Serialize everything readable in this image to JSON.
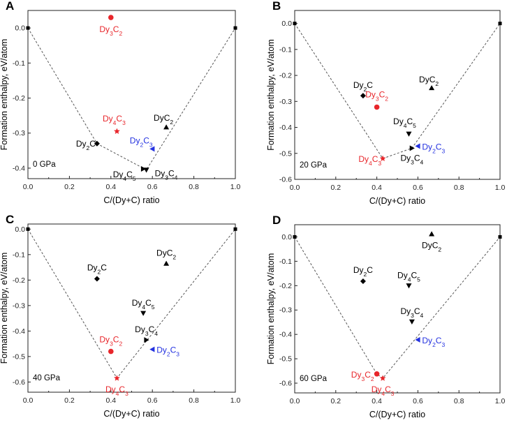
{
  "colors": {
    "black": "#000000",
    "red": "#e8262b",
    "blue": "#2432e0",
    "axis": "#222222",
    "hull": "#555555"
  },
  "chart_data": [
    {
      "panel_label": "A",
      "type": "scatter",
      "pressure_label": "0 GPa",
      "xlabel": "C/(Dy+C) ratio",
      "ylabel": "Formation enthalpy, eV/atom",
      "xlim": [
        0.0,
        1.0
      ],
      "ylim": [
        -0.43,
        0.05
      ],
      "xticks": [
        "0.0",
        "0.2",
        "0.4",
        "0.6",
        "0.8",
        "1.0"
      ],
      "yticks": [
        "-0.4",
        "-0.3",
        "-0.2",
        "-0.1",
        "0.0"
      ],
      "ytick_values": [
        -0.4,
        -0.3,
        -0.2,
        -0.1,
        0.0
      ],
      "hull": [
        [
          0.0,
          0.0
        ],
        [
          0.333,
          -0.33
        ],
        [
          0.571,
          -0.405
        ],
        [
          1.0,
          0.0
        ]
      ],
      "points": [
        {
          "x": 0.0,
          "y": 0.0,
          "marker": "square",
          "color": "black",
          "label": "",
          "sub": []
        },
        {
          "x": 1.0,
          "y": 0.0,
          "marker": "square",
          "color": "black",
          "label": "",
          "sub": []
        },
        {
          "x": 0.333,
          "y": -0.33,
          "marker": "diamond",
          "color": "black",
          "label": "Dy2C",
          "sub": [
            "Dy",
            "2",
            "C",
            ""
          ]
        },
        {
          "x": 0.4,
          "y": 0.03,
          "marker": "circle",
          "color": "red",
          "label": "Dy3C2",
          "sub": [
            "Dy",
            "3",
            "C",
            "2"
          ]
        },
        {
          "x": 0.429,
          "y": -0.295,
          "marker": "star",
          "color": "red",
          "label": "Dy4C3",
          "sub": [
            "Dy",
            "4",
            "C",
            "3"
          ]
        },
        {
          "x": 0.556,
          "y": -0.402,
          "marker": "tri-right",
          "color": "black",
          "label": "Dy4C5",
          "sub": [
            "Dy",
            "4",
            "C",
            "5"
          ]
        },
        {
          "x": 0.571,
          "y": -0.405,
          "marker": "tri-down",
          "color": "black",
          "label": "Dy3C4",
          "sub": [
            "Dy",
            "3",
            "C",
            "4"
          ]
        },
        {
          "x": 0.6,
          "y": -0.345,
          "marker": "tri-left",
          "color": "blue",
          "label": "Dy2C3",
          "sub": [
            "Dy",
            "2",
            "C",
            "3"
          ]
        },
        {
          "x": 0.667,
          "y": -0.283,
          "marker": "tri-up",
          "color": "black",
          "label": "DyC2",
          "sub": [
            "Dy",
            "",
            "C",
            "2"
          ]
        }
      ]
    },
    {
      "panel_label": "B",
      "type": "scatter",
      "pressure_label": "20 GPa",
      "xlabel": "C/(Dy+C) ratio",
      "ylabel": "Formation enthalpy, eV/atom",
      "xlim": [
        0.0,
        1.0
      ],
      "ylim": [
        -0.6,
        0.05
      ],
      "xticks": [
        "0.0",
        "0.2",
        "0.4",
        "0.6",
        "0.8",
        "1.0"
      ],
      "yticks": [
        "-0.6",
        "-0.5",
        "-0.4",
        "-0.3",
        "-0.2",
        "-0.1",
        "0.0"
      ],
      "ytick_values": [
        -0.6,
        -0.5,
        -0.4,
        -0.3,
        -0.2,
        -0.1,
        0.0
      ],
      "hull": [
        [
          0.0,
          0.0
        ],
        [
          0.429,
          -0.52
        ],
        [
          0.571,
          -0.48
        ],
        [
          1.0,
          0.0
        ]
      ],
      "points": [
        {
          "x": 0.0,
          "y": 0.0,
          "marker": "square",
          "color": "black",
          "label": "",
          "sub": []
        },
        {
          "x": 1.0,
          "y": 0.0,
          "marker": "square",
          "color": "black",
          "label": "",
          "sub": []
        },
        {
          "x": 0.333,
          "y": -0.278,
          "marker": "diamond",
          "color": "black",
          "label": "Dy2C",
          "sub": [
            "Dy",
            "2",
            "C",
            ""
          ]
        },
        {
          "x": 0.4,
          "y": -0.322,
          "marker": "circle",
          "color": "red",
          "label": "Dy3C2",
          "sub": [
            "Dy",
            "3",
            "C",
            "2"
          ]
        },
        {
          "x": 0.429,
          "y": -0.52,
          "marker": "star",
          "color": "red",
          "label": "Dy4C3",
          "sub": [
            "Dy",
            "4",
            "C",
            "3"
          ]
        },
        {
          "x": 0.556,
          "y": -0.425,
          "marker": "tri-down",
          "color": "black",
          "label": "Dy4C5",
          "sub": [
            "Dy",
            "4",
            "C",
            "5"
          ]
        },
        {
          "x": 0.571,
          "y": -0.48,
          "marker": "tri-right",
          "color": "black",
          "label": "Dy3C4",
          "sub": [
            "Dy",
            "3",
            "C",
            "4"
          ]
        },
        {
          "x": 0.6,
          "y": -0.472,
          "marker": "tri-left",
          "color": "blue",
          "label": "Dy2C3",
          "sub": [
            "Dy",
            "2",
            "C",
            "3"
          ]
        },
        {
          "x": 0.667,
          "y": -0.248,
          "marker": "tri-up",
          "color": "black",
          "label": "DyC2",
          "sub": [
            "Dy",
            "",
            "C",
            "2"
          ]
        }
      ]
    },
    {
      "panel_label": "C",
      "type": "scatter",
      "pressure_label": "40 GPa",
      "xlabel": "C/(Dy+C) ratio",
      "ylabel": "Formation enthalpy, eV/atom",
      "xlim": [
        0.0,
        1.0
      ],
      "ylim": [
        -0.64,
        0.02
      ],
      "xticks": [
        "0.0",
        "0.2",
        "0.4",
        "0.6",
        "0.8",
        "1.0"
      ],
      "yticks": [
        "-0.6",
        "-0.5",
        "-0.4",
        "-0.3",
        "-0.2",
        "-0.1",
        "0.0"
      ],
      "ytick_values": [
        -0.6,
        -0.5,
        -0.4,
        -0.3,
        -0.2,
        -0.1,
        0.0
      ],
      "hull": [
        [
          0.0,
          0.0
        ],
        [
          0.429,
          -0.585
        ],
        [
          1.0,
          0.0
        ]
      ],
      "points": [
        {
          "x": 0.0,
          "y": 0.0,
          "marker": "square",
          "color": "black",
          "label": "",
          "sub": []
        },
        {
          "x": 1.0,
          "y": 0.0,
          "marker": "square",
          "color": "black",
          "label": "",
          "sub": []
        },
        {
          "x": 0.333,
          "y": -0.195,
          "marker": "diamond",
          "color": "black",
          "label": "Dy2C",
          "sub": [
            "Dy",
            "2",
            "C",
            ""
          ]
        },
        {
          "x": 0.4,
          "y": -0.48,
          "marker": "circle",
          "color": "red",
          "label": "Dy3C2",
          "sub": [
            "Dy",
            "3",
            "C",
            "2"
          ]
        },
        {
          "x": 0.429,
          "y": -0.585,
          "marker": "star",
          "color": "red",
          "label": "Dy4C3",
          "sub": [
            "Dy",
            "4",
            "C",
            "3"
          ]
        },
        {
          "x": 0.556,
          "y": -0.33,
          "marker": "tri-down",
          "color": "black",
          "label": "Dy4C5",
          "sub": [
            "Dy",
            "4",
            "C",
            "5"
          ]
        },
        {
          "x": 0.571,
          "y": -0.435,
          "marker": "tri-right",
          "color": "black",
          "label": "Dy3C4",
          "sub": [
            "Dy",
            "3",
            "C",
            "4"
          ]
        },
        {
          "x": 0.6,
          "y": -0.472,
          "marker": "tri-left",
          "color": "blue",
          "label": "Dy2C3",
          "sub": [
            "Dy",
            "2",
            "C",
            "3"
          ]
        },
        {
          "x": 0.667,
          "y": -0.135,
          "marker": "tri-up",
          "color": "black",
          "label": "DyC2",
          "sub": [
            "Dy",
            "",
            "C",
            "2"
          ]
        }
      ]
    },
    {
      "panel_label": "D",
      "type": "scatter",
      "pressure_label": "60 GPa",
      "xlabel": "C/(Dy+C) ratio",
      "ylabel": "Formation enthalpy, eV/atom",
      "xlim": [
        0.0,
        1.0
      ],
      "ylim": [
        -0.64,
        0.05
      ],
      "xticks": [
        "0.0",
        "0.2",
        "0.4",
        "0.6",
        "0.8",
        "1.0"
      ],
      "yticks": [
        "-0.6",
        "-0.5",
        "-0.4",
        "-0.3",
        "-0.2",
        "-0.1",
        "0.0"
      ],
      "ytick_values": [
        -0.6,
        -0.5,
        -0.4,
        -0.3,
        -0.2,
        -0.1,
        0.0
      ],
      "hull": [
        [
          0.0,
          0.0
        ],
        [
          0.4,
          -0.562
        ],
        [
          0.429,
          -0.58
        ],
        [
          1.0,
          0.0
        ]
      ],
      "points": [
        {
          "x": 0.0,
          "y": 0.0,
          "marker": "square",
          "color": "black",
          "label": "",
          "sub": []
        },
        {
          "x": 1.0,
          "y": 0.0,
          "marker": "square",
          "color": "black",
          "label": "",
          "sub": []
        },
        {
          "x": 0.333,
          "y": -0.182,
          "marker": "diamond",
          "color": "black",
          "label": "Dy2C",
          "sub": [
            "Dy",
            "2",
            "C",
            ""
          ]
        },
        {
          "x": 0.4,
          "y": -0.562,
          "marker": "circle",
          "color": "red",
          "label": "Dy3C2",
          "sub": [
            "Dy",
            "3",
            "C",
            "2"
          ]
        },
        {
          "x": 0.429,
          "y": -0.58,
          "marker": "star",
          "color": "red",
          "label": "Dy4C3",
          "sub": [
            "Dy",
            "4",
            "C",
            "3"
          ]
        },
        {
          "x": 0.556,
          "y": -0.2,
          "marker": "tri-down",
          "color": "black",
          "label": "Dy4C5",
          "sub": [
            "Dy",
            "4",
            "C",
            "5"
          ]
        },
        {
          "x": 0.571,
          "y": -0.348,
          "marker": "tri-down",
          "color": "black",
          "label": "Dy3C4",
          "sub": [
            "Dy",
            "3",
            "C",
            "4"
          ]
        },
        {
          "x": 0.6,
          "y": -0.422,
          "marker": "tri-left",
          "color": "blue",
          "label": "Dy2C3",
          "sub": [
            "Dy",
            "2",
            "C",
            "3"
          ]
        },
        {
          "x": 0.667,
          "y": 0.012,
          "marker": "tri-up",
          "color": "black",
          "label": "DyC2",
          "sub": [
            "Dy",
            "",
            "C",
            "2"
          ]
        }
      ]
    }
  ]
}
